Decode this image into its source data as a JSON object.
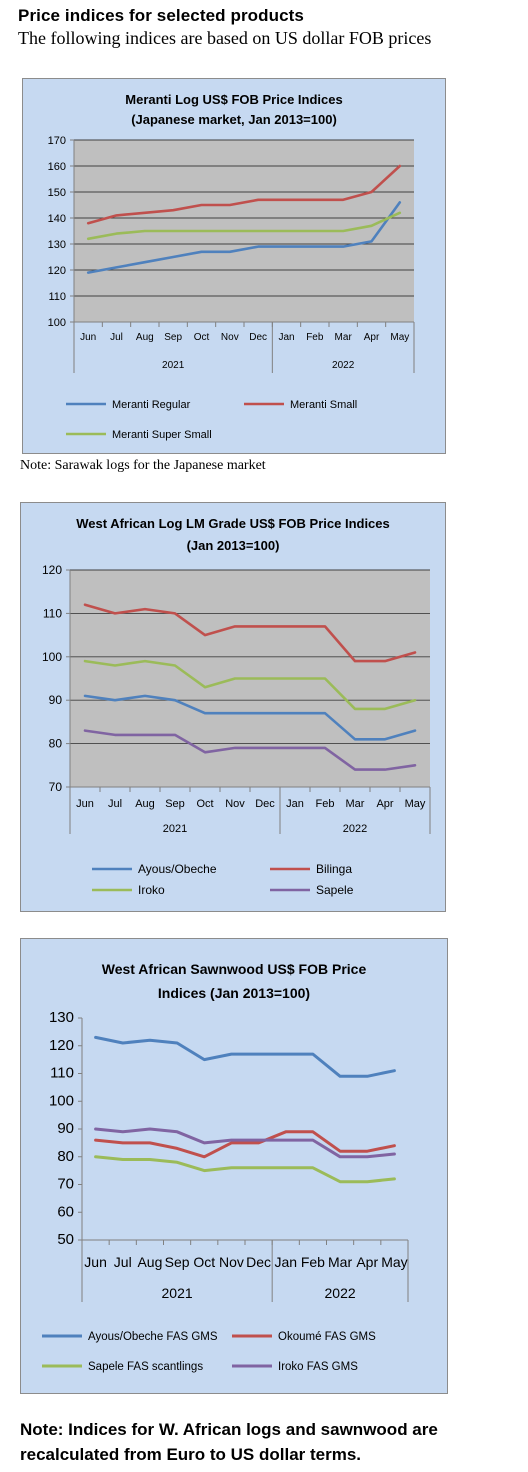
{
  "header": {
    "title": "Price indices for selected products",
    "subtitle": "The following indices are based on US dollar FOB prices"
  },
  "notes": {
    "note1": "Note: Sarawak logs for the Japanese market",
    "note2_line1": "Note: Indices for W. African logs and sawnwood are",
    "note2_line2": "recalculated from Euro to US dollar terms."
  },
  "colors": {
    "panel_bg": "#c6d9f1",
    "plot_bg": "#bfbfbf",
    "blue": "#4f81bd",
    "red": "#c0504d",
    "green": "#9bbb59",
    "purple": "#8064a2"
  },
  "chart_data": [
    {
      "type": "line",
      "title": "Meranti Log US$ FOB Price Indices",
      "subtitle": "(Japanese market, Jan 2013=100)",
      "categories": [
        "Jun",
        "Jul",
        "Aug",
        "Sep",
        "Oct",
        "Nov",
        "Dec",
        "Jan",
        "Feb",
        "Mar",
        "Apr",
        "May"
      ],
      "year_groups": [
        {
          "label": "2021",
          "span": 7
        },
        {
          "label": "2022",
          "span": 5
        }
      ],
      "ylim": [
        100,
        170
      ],
      "yticks": [
        100,
        110,
        120,
        130,
        140,
        150,
        160,
        170
      ],
      "grid": true,
      "legend_position": "bottom",
      "series": [
        {
          "name": "Meranti Regular",
          "color": "#4f81bd",
          "values": [
            119,
            121,
            123,
            125,
            127,
            127,
            129,
            129,
            129,
            129,
            131,
            146
          ]
        },
        {
          "name": "Meranti Small",
          "color": "#c0504d",
          "values": [
            138,
            141,
            142,
            143,
            145,
            145,
            147,
            147,
            147,
            147,
            150,
            160
          ]
        },
        {
          "name": "Meranti Super Small",
          "color": "#9bbb59",
          "values": [
            132,
            134,
            135,
            135,
            135,
            135,
            135,
            135,
            135,
            135,
            137,
            142
          ]
        }
      ]
    },
    {
      "type": "line",
      "title": "West African Log LM Grade US$ FOB Price Indices",
      "subtitle": "(Jan 2013=100)",
      "categories": [
        "Jun",
        "Jul",
        "Aug",
        "Sep",
        "Oct",
        "Nov",
        "Dec",
        "Jan",
        "Feb",
        "Mar",
        "Apr",
        "May"
      ],
      "year_groups": [
        {
          "label": "2021",
          "span": 7
        },
        {
          "label": "2022",
          "span": 5
        }
      ],
      "ylim": [
        70,
        120
      ],
      "yticks": [
        70,
        80,
        90,
        100,
        110,
        120
      ],
      "grid": true,
      "legend_position": "bottom",
      "series": [
        {
          "name": "Ayous/Obeche",
          "color": "#4f81bd",
          "values": [
            91,
            90,
            91,
            90,
            87,
            87,
            87,
            87,
            87,
            81,
            81,
            83
          ]
        },
        {
          "name": "Bilinga",
          "color": "#c0504d",
          "values": [
            112,
            110,
            111,
            110,
            105,
            107,
            107,
            107,
            107,
            99,
            99,
            101
          ]
        },
        {
          "name": "Iroko",
          "color": "#9bbb59",
          "values": [
            99,
            98,
            99,
            98,
            93,
            95,
            95,
            95,
            95,
            88,
            88,
            90
          ]
        },
        {
          "name": "Sapele",
          "color": "#8064a2",
          "values": [
            83,
            82,
            82,
            82,
            78,
            79,
            79,
            79,
            79,
            74,
            74,
            75
          ]
        }
      ]
    },
    {
      "type": "line",
      "title": "West African Sawnwood US$ FOB Price",
      "subtitle": "Indices (Jan 2013=100)",
      "categories": [
        "Jun",
        "Jul",
        "Aug",
        "Sep",
        "Oct",
        "Nov",
        "Dec",
        "Jan",
        "Feb",
        "Mar",
        "Apr",
        "May"
      ],
      "year_groups": [
        {
          "label": "2021",
          "span": 7
        },
        {
          "label": "2022",
          "span": 5
        }
      ],
      "ylim": [
        50,
        130
      ],
      "yticks": [
        50,
        60,
        70,
        80,
        90,
        100,
        110,
        120,
        130
      ],
      "grid": false,
      "legend_position": "bottom",
      "series": [
        {
          "name": "Ayous/Obeche  FAS GMS",
          "color": "#4f81bd",
          "values": [
            123,
            121,
            122,
            121,
            115,
            117,
            117,
            117,
            117,
            109,
            109,
            111
          ]
        },
        {
          "name": "Okoumé  FAS GMS",
          "color": "#c0504d",
          "values": [
            86,
            85,
            85,
            83,
            80,
            85,
            85,
            89,
            89,
            82,
            82,
            84
          ]
        },
        {
          "name": "Sapele FAS scantlings",
          "color": "#9bbb59",
          "values": [
            80,
            79,
            79,
            78,
            75,
            76,
            76,
            76,
            76,
            71,
            71,
            72
          ]
        },
        {
          "name": "Iroko FAS GMS",
          "color": "#8064a2",
          "values": [
            90,
            89,
            90,
            89,
            85,
            86,
            86,
            86,
            86,
            80,
            80,
            81
          ]
        }
      ]
    }
  ]
}
